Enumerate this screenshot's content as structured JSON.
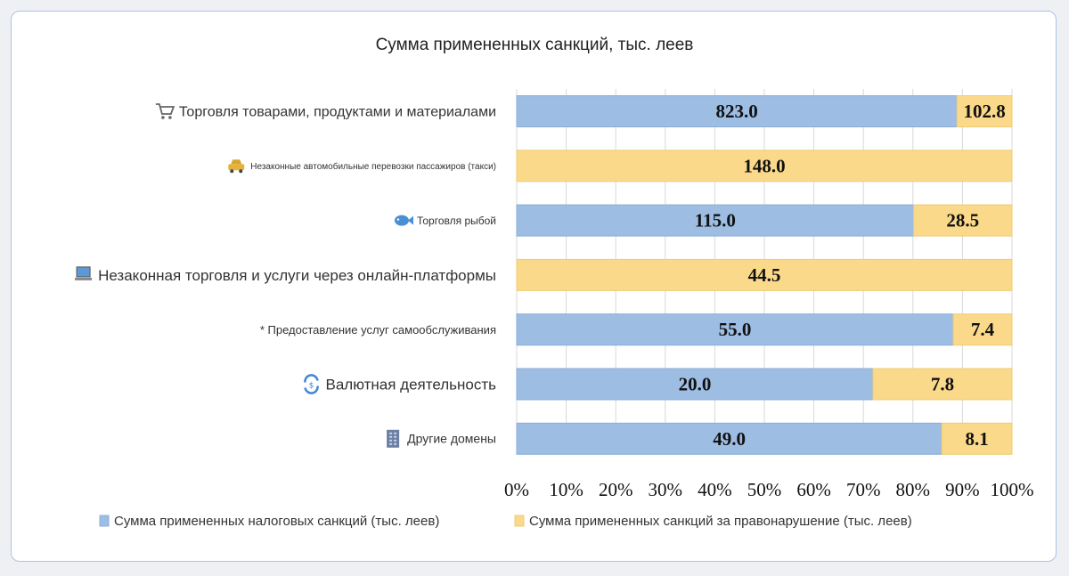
{
  "chart_data": {
    "type": "bar",
    "stacked": "percent",
    "orientation": "horizontal",
    "title": "Сумма примененных санкций, тыс. леев",
    "categories": [
      "Торговля товарами, продуктами и материалами",
      "Незаконные автомобильные перевозки пассажиров (такси)",
      "Торговля рыбой",
      "Незаконная торговля и услуги через онлайн-платформы",
      "* Предоставление услуг самообслуживания",
      "Валютная деятельность",
      "Другие домены"
    ],
    "category_icons": [
      "cart-icon",
      "taxi-icon",
      "fish-icon",
      "laptop-icon",
      "",
      "exchange-icon",
      "building-icon"
    ],
    "series": [
      {
        "name": "Сумма примененных налоговых санкций (тыс. леев)",
        "color": "#9dbde3",
        "values": [
          823.0,
          0,
          115.0,
          0,
          55.0,
          20.0,
          49.0
        ],
        "labels": [
          "823.0",
          "",
          "115.0",
          "",
          "55.0",
          "20.0",
          "49.0"
        ]
      },
      {
        "name": "Сумма примененных санкций за правонарушение (тыс. леев)",
        "color": "#fad98a",
        "values": [
          102.8,
          148.0,
          28.5,
          44.5,
          7.4,
          7.8,
          8.1
        ],
        "labels": [
          "102.8",
          "148.0",
          "28.5",
          "44.5",
          "7.4",
          "7.8",
          "8.1"
        ]
      }
    ],
    "x_ticks": [
      "0%",
      "10%",
      "20%",
      "30%",
      "40%",
      "50%",
      "60%",
      "70%",
      "80%",
      "90%",
      "100%"
    ],
    "xlim": [
      0,
      100
    ],
    "grid": true,
    "legend_position": "bottom"
  }
}
